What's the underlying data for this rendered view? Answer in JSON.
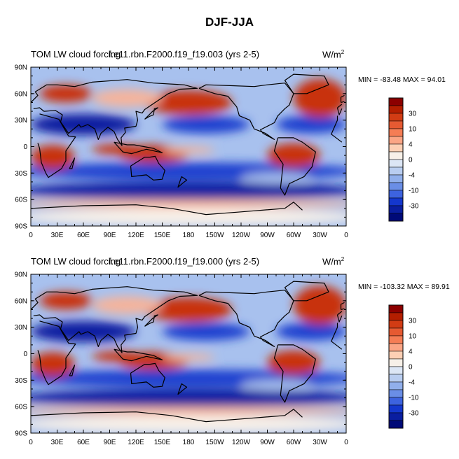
{
  "figure": {
    "title": "DJF-JJA"
  },
  "panels": [
    {
      "left_title": "TOM LW cloud forcing",
      "center_title": "f.e11.rbn.F2000.f19_f19.003 (yrs 2-5)",
      "units_base": "W/m",
      "units_exp": "2",
      "min_max": "MIN = -83.48 MAX =  94.01"
    },
    {
      "left_title": "TOM LW cloud forcing",
      "center_title": "f.e11.rbn.F2000.f19_f19.000 (yrs 2-5)",
      "units_base": "W/m",
      "units_exp": "2",
      "min_max": "MIN = -103.32 MAX =  89.91"
    }
  ],
  "axes": {
    "lat_labels": [
      "90N",
      "60N",
      "30N",
      "0",
      "30S",
      "60S",
      "90S"
    ],
    "lon_labels": [
      "0",
      "30E",
      "60E",
      "90E",
      "120E",
      "150E",
      "180",
      "150W",
      "120W",
      "90W",
      "60W",
      "30W",
      "0"
    ]
  },
  "colorbar": {
    "labels": [
      "30",
      "10",
      "4",
      "0",
      "-4",
      "-10",
      "-30"
    ],
    "colors": [
      "#8c0000",
      "#b41e00",
      "#d23c14",
      "#e65a32",
      "#f57d55",
      "#fba585",
      "#fdcfb4",
      "#f7f0e8",
      "#dce6f5",
      "#b9cdf0",
      "#91afeb",
      "#6a8ee6",
      "#3d63df",
      "#1437cd",
      "#0a1ea0",
      "#000a78"
    ]
  },
  "colors": {
    "strong_pos": "#c8320f",
    "weak_pos": "#f5b49b",
    "neutral": "#f7f0e8",
    "weak_neg": "#a8c1ee",
    "strong_neg": "#1d3fcf",
    "deep_neg": "#0a1ea0"
  }
}
